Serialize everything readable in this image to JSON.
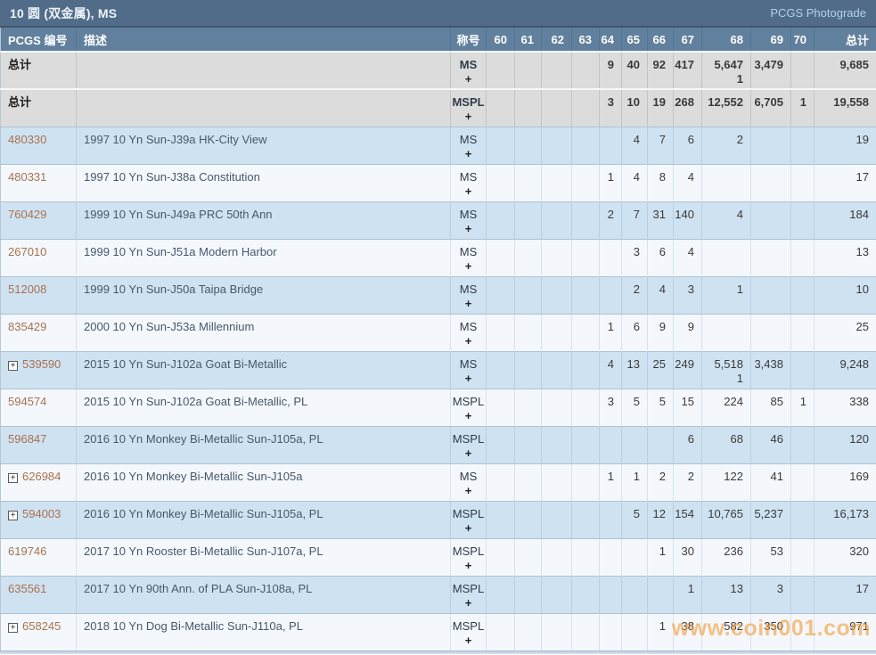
{
  "header": {
    "title": "10 圆 (双金属), MS",
    "right_label": "PCGS Photograde"
  },
  "columns": [
    "PCGS 编号",
    "描述",
    "称号",
    "60",
    "61",
    "62",
    "63",
    "64",
    "65",
    "66",
    "67",
    "68",
    "69",
    "70",
    "总计"
  ],
  "icons": {
    "plus_glyph": "+",
    "expand_glyph": "+"
  },
  "watermark": "www.coin001.com",
  "rows": [
    {
      "no": "总计",
      "is_total": true,
      "expand": false,
      "desc": "",
      "designation": "MS",
      "g": [
        "",
        "",
        "",
        "",
        "9",
        "40",
        "92",
        "417",
        "5,647",
        "3,479",
        "",
        "9,685"
      ],
      "g2": [
        "",
        "",
        "",
        "",
        "",
        "",
        "",
        "",
        "1",
        "",
        "",
        ""
      ]
    },
    {
      "no": "总计",
      "is_total": true,
      "expand": false,
      "desc": "",
      "designation": "MSPL",
      "g": [
        "",
        "",
        "",
        "",
        "3",
        "10",
        "19",
        "268",
        "12,552",
        "6,705",
        "1",
        "19,558"
      ],
      "g2": [
        "",
        "",
        "",
        "",
        "",
        "",
        "",
        "",
        "",
        "",
        "",
        ""
      ]
    },
    {
      "no": "480330",
      "is_total": false,
      "expand": false,
      "desc": "1997 10 Yn Sun-J39a HK-City View",
      "designation": "MS",
      "g": [
        "",
        "",
        "",
        "",
        "",
        "4",
        "7",
        "6",
        "2",
        "",
        "",
        "19"
      ],
      "g2": [
        "",
        "",
        "",
        "",
        "",
        "",
        "",
        "",
        "",
        "",
        "",
        ""
      ]
    },
    {
      "no": "480331",
      "is_total": false,
      "expand": false,
      "desc": "1997 10 Yn Sun-J38a Constitution",
      "designation": "MS",
      "g": [
        "",
        "",
        "",
        "",
        "1",
        "4",
        "8",
        "4",
        "",
        "",
        "",
        "17"
      ],
      "g2": [
        "",
        "",
        "",
        "",
        "",
        "",
        "",
        "",
        "",
        "",
        "",
        ""
      ]
    },
    {
      "no": "760429",
      "is_total": false,
      "expand": false,
      "desc": "1999 10 Yn Sun-J49a PRC 50th Ann",
      "designation": "MS",
      "g": [
        "",
        "",
        "",
        "",
        "2",
        "7",
        "31",
        "140",
        "4",
        "",
        "",
        "184"
      ],
      "g2": [
        "",
        "",
        "",
        "",
        "",
        "",
        "",
        "",
        "",
        "",
        "",
        ""
      ]
    },
    {
      "no": "267010",
      "is_total": false,
      "expand": false,
      "desc": "1999 10 Yn Sun-J51a Modern Harbor",
      "designation": "MS",
      "g": [
        "",
        "",
        "",
        "",
        "",
        "3",
        "6",
        "4",
        "",
        "",
        "",
        "13"
      ],
      "g2": [
        "",
        "",
        "",
        "",
        "",
        "",
        "",
        "",
        "",
        "",
        "",
        ""
      ]
    },
    {
      "no": "512008",
      "is_total": false,
      "expand": false,
      "desc": "1999 10 Yn Sun-J50a Taipa Bridge",
      "designation": "MS",
      "g": [
        "",
        "",
        "",
        "",
        "",
        "2",
        "4",
        "3",
        "1",
        "",
        "",
        "10"
      ],
      "g2": [
        "",
        "",
        "",
        "",
        "",
        "",
        "",
        "",
        "",
        "",
        "",
        ""
      ]
    },
    {
      "no": "835429",
      "is_total": false,
      "expand": false,
      "desc": "2000 10 Yn Sun-J53a Millennium",
      "designation": "MS",
      "g": [
        "",
        "",
        "",
        "",
        "1",
        "6",
        "9",
        "9",
        "",
        "",
        "",
        "25"
      ],
      "g2": [
        "",
        "",
        "",
        "",
        "",
        "",
        "",
        "",
        "",
        "",
        "",
        ""
      ]
    },
    {
      "no": "539590",
      "is_total": false,
      "expand": true,
      "desc": "2015 10 Yn Sun-J102a Goat Bi-Metallic",
      "designation": "MS",
      "g": [
        "",
        "",
        "",
        "",
        "4",
        "13",
        "25",
        "249",
        "5,518",
        "3,438",
        "",
        "9,248"
      ],
      "g2": [
        "",
        "",
        "",
        "",
        "",
        "",
        "",
        "",
        "1",
        "",
        "",
        ""
      ]
    },
    {
      "no": "594574",
      "is_total": false,
      "expand": false,
      "desc": "2015 10 Yn Sun-J102a Goat Bi-Metallic, PL",
      "designation": "MSPL",
      "g": [
        "",
        "",
        "",
        "",
        "3",
        "5",
        "5",
        "15",
        "224",
        "85",
        "1",
        "338"
      ],
      "g2": [
        "",
        "",
        "",
        "",
        "",
        "",
        "",
        "",
        "",
        "",
        "",
        ""
      ]
    },
    {
      "no": "596847",
      "is_total": false,
      "expand": false,
      "desc": "2016 10 Yn Monkey Bi-Metallic Sun-J105a, PL",
      "designation": "MSPL",
      "g": [
        "",
        "",
        "",
        "",
        "",
        "",
        "",
        "6",
        "68",
        "46",
        "",
        "120"
      ],
      "g2": [
        "",
        "",
        "",
        "",
        "",
        "",
        "",
        "",
        "",
        "",
        "",
        ""
      ]
    },
    {
      "no": "626984",
      "is_total": false,
      "expand": true,
      "desc": "2016 10 Yn Monkey Bi-Metallic Sun-J105a",
      "designation": "MS",
      "g": [
        "",
        "",
        "",
        "",
        "1",
        "1",
        "2",
        "2",
        "122",
        "41",
        "",
        "169"
      ],
      "g2": [
        "",
        "",
        "",
        "",
        "",
        "",
        "",
        "",
        "",
        "",
        "",
        ""
      ]
    },
    {
      "no": "594003",
      "is_total": false,
      "expand": true,
      "desc": "2016 10 Yn Monkey Bi-Metallic Sun-J105a, PL",
      "designation": "MSPL",
      "g": [
        "",
        "",
        "",
        "",
        "",
        "5",
        "12",
        "154",
        "10,765",
        "5,237",
        "",
        "16,173"
      ],
      "g2": [
        "",
        "",
        "",
        "",
        "",
        "",
        "",
        "",
        "",
        "",
        "",
        ""
      ]
    },
    {
      "no": "619746",
      "is_total": false,
      "expand": false,
      "desc": "2017 10 Yn Rooster Bi-Metallic Sun-J107a, PL",
      "designation": "MSPL",
      "g": [
        "",
        "",
        "",
        "",
        "",
        "",
        "1",
        "30",
        "236",
        "53",
        "",
        "320"
      ],
      "g2": [
        "",
        "",
        "",
        "",
        "",
        "",
        "",
        "",
        "",
        "",
        "",
        ""
      ]
    },
    {
      "no": "635561",
      "is_total": false,
      "expand": false,
      "desc": "2017 10 Yn 90th Ann. of PLA Sun-J108a, PL",
      "designation": "MSPL",
      "g": [
        "",
        "",
        "",
        "",
        "",
        "",
        "",
        "1",
        "13",
        "3",
        "",
        "17"
      ],
      "g2": [
        "",
        "",
        "",
        "",
        "",
        "",
        "",
        "",
        "",
        "",
        "",
        ""
      ]
    },
    {
      "no": "658245",
      "is_total": false,
      "expand": true,
      "desc": "2018 10 Yn Dog Bi-Metallic Sun-J110a, PL",
      "designation": "MSPL",
      "g": [
        "",
        "",
        "",
        "",
        "",
        "",
        "1",
        "38",
        "582",
        "350",
        "",
        "971"
      ],
      "g2": [
        "",
        "",
        "",
        "",
        "",
        "",
        "",
        "",
        "",
        "",
        "",
        ""
      ]
    }
  ]
}
